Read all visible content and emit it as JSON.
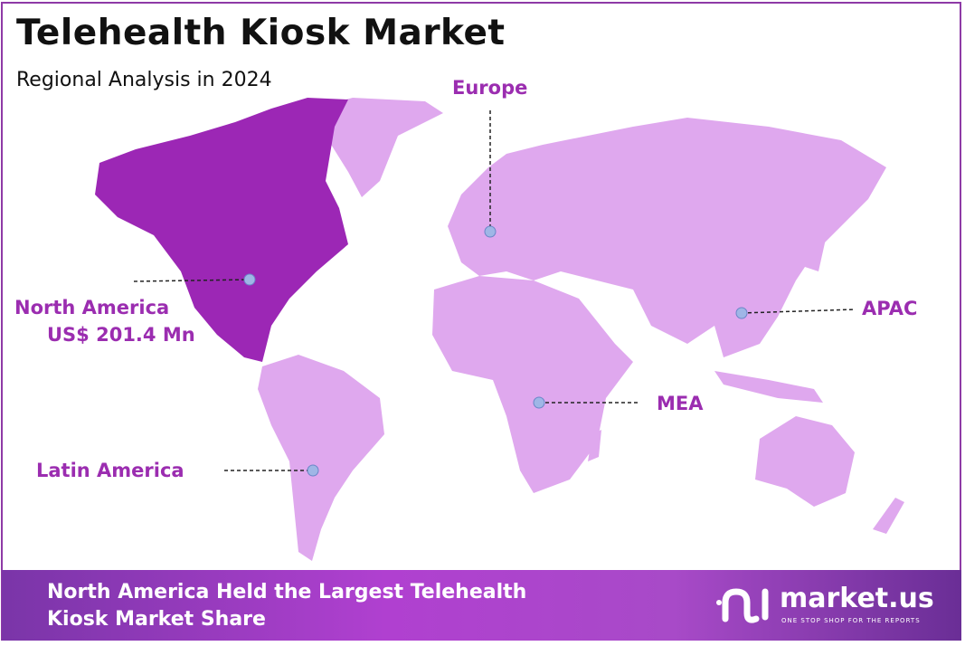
{
  "header": {
    "title": "Telehealth Kiosk Market",
    "subtitle": "Regional Analysis in 2024"
  },
  "regions": [
    {
      "name": "North America",
      "value": "US$  201.4 Mn",
      "highlighted": true
    },
    {
      "name": "Europe"
    },
    {
      "name": "APAC"
    },
    {
      "name": "MEA"
    },
    {
      "name": "Latin America"
    }
  ],
  "colors": {
    "highlight": "#9c27b5",
    "other": "#dfa8ee",
    "label": "#9b2db0",
    "marker": "#9fb6e6"
  },
  "banner": {
    "line1": "North America Held the Largest Telehealth",
    "line2": "Kiosk Market Share"
  },
  "logo": {
    "name": "market.us",
    "tagline": "ONE STOP SHOP FOR THE REPORTS"
  }
}
